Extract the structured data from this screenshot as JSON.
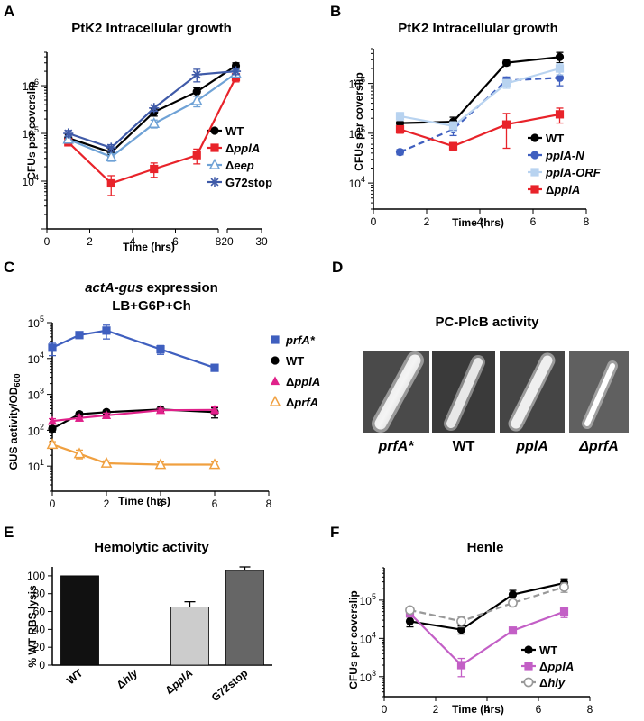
{
  "panels": {
    "A": {
      "letter": "A",
      "title": "PtK2 Intracellular growth",
      "xlabel": "Time (hrs)",
      "ylabel": "CFUs per coverslip"
    },
    "B": {
      "letter": "B",
      "title": "PtK2 Intracellular growth",
      "xlabel": "Time (hrs)",
      "ylabel": "CFUs per coverslip"
    },
    "C": {
      "letter": "C",
      "title_line1_italic": "actA-gus",
      "title_line1_rest": " expression",
      "title_line2": "LB+G6P+Ch",
      "xlabel": "Time (hrs)",
      "ylabel": "GUS activity/OD",
      "ylabel_sub": "600"
    },
    "D": {
      "letter": "D",
      "title": "PC-PlcB activity",
      "labels": [
        "prfA*",
        "WT",
        "pplA",
        "ΔprfA"
      ]
    },
    "E": {
      "letter": "E",
      "title": "Hemolytic activity",
      "ylabel": "% WT RBS lysis"
    },
    "F": {
      "letter": "F",
      "title": "Henle",
      "xlabel": "Time (hrs)",
      "ylabel": "CFUs per coverslip"
    }
  },
  "chart_data": [
    {
      "panel": "A",
      "type": "line",
      "title": "PtK2 Intracellular growth",
      "xlabel": "Time (hrs)",
      "ylabel": "CFUs per coverslip",
      "yscale": "log",
      "ylim": [
        1000,
        5000000
      ],
      "xlim": [
        0,
        30
      ],
      "x_axis_break": [
        8,
        22
      ],
      "xticks": [
        "0",
        "2",
        "4",
        "6",
        "8",
        "20",
        "30"
      ],
      "yticks": [
        "10^4",
        "10^5",
        "10^6"
      ],
      "legend": "right",
      "series": [
        {
          "name": "WT",
          "label_parts": [
            "WT"
          ],
          "color": "#000000",
          "marker": "circle",
          "x": [
            1,
            3,
            5,
            7,
            24
          ],
          "y": [
            80000,
            40000,
            280000,
            750000,
            2600000
          ],
          "err": [
            15000,
            8000,
            50000,
            150000,
            400000
          ]
        },
        {
          "name": "ΔpplA",
          "label_parts": [
            "Δ",
            "pplA"
          ],
          "color": "#e8232a",
          "marker": "square",
          "x": [
            1,
            3,
            5,
            7,
            24
          ],
          "y": [
            65000,
            9000,
            18000,
            35000,
            1500000
          ],
          "err": [
            10000,
            4000,
            6000,
            12000,
            300000
          ]
        },
        {
          "name": "Δeep",
          "label_parts": [
            "Δ",
            "eep"
          ],
          "color": "#6fa2d6",
          "marker": "triangle-open",
          "x": [
            1,
            3,
            5,
            7,
            24
          ],
          "y": [
            75000,
            32000,
            160000,
            480000,
            1800000
          ],
          "err": [
            12000,
            6000,
            30000,
            120000,
            300000
          ]
        },
        {
          "name": "G72stop",
          "label_parts": [
            "G72stop"
          ],
          "color": "#3f5aa8",
          "marker": "star",
          "x": [
            1,
            3,
            5,
            7,
            24
          ],
          "y": [
            100000,
            50000,
            340000,
            1700000,
            2000000
          ],
          "err": [
            15000,
            8000,
            50000,
            500000,
            300000
          ]
        }
      ]
    },
    {
      "panel": "B",
      "type": "line",
      "title": "PtK2 Intracellular growth",
      "xlabel": "Time (hrs)",
      "ylabel": "CFUs per coverslip",
      "yscale": "log",
      "ylim": [
        3000,
        5000000
      ],
      "xlim": [
        0,
        8
      ],
      "xticks": [
        "0",
        "2",
        "4",
        "6",
        "8"
      ],
      "yticks": [
        "10^4",
        "10^5",
        "10^6"
      ],
      "legend": "right",
      "series": [
        {
          "name": "WT",
          "label_parts": [
            "WT"
          ],
          "color": "#000000",
          "marker": "circle",
          "dash": false,
          "x": [
            1,
            3,
            5,
            7
          ],
          "y": [
            160000,
            170000,
            2600000,
            3400000
          ],
          "err": [
            40000,
            40000,
            300000,
            800000
          ]
        },
        {
          "name": "pplA-N",
          "label_parts": [
            "",
            "pplA-N"
          ],
          "color": "#3f5fbf",
          "marker": "circle",
          "dash": true,
          "x": [
            1,
            3,
            5,
            7
          ],
          "y": [
            42000,
            120000,
            1150000,
            1300000
          ],
          "err": [
            5000,
            30000,
            200000,
            400000
          ]
        },
        {
          "name": "pplA-ORF",
          "label_parts": [
            "",
            "pplA-ORF"
          ],
          "color": "#b8d3f0",
          "marker": "square",
          "dash": false,
          "x": [
            1,
            3,
            5,
            7
          ],
          "y": [
            220000,
            140000,
            1000000,
            2000000
          ],
          "err": [
            40000,
            30000,
            200000,
            500000
          ]
        },
        {
          "name": "ΔpplA",
          "label_parts": [
            "Δ",
            "pplA"
          ],
          "color": "#e8232a",
          "marker": "square",
          "dash": false,
          "x": [
            1,
            3,
            5,
            7
          ],
          "y": [
            120000,
            55000,
            150000,
            240000
          ],
          "err": [
            20000,
            10000,
            100000,
            80000
          ]
        }
      ]
    },
    {
      "panel": "C",
      "type": "line",
      "title": "actA-gus expression LB+G6P+Ch",
      "xlabel": "Time (hrs)",
      "ylabel": "GUS activity/OD600",
      "yscale": "log",
      "ylim": [
        2,
        100000
      ],
      "xlim": [
        0,
        8
      ],
      "xticks": [
        "0",
        "2",
        "4",
        "6",
        "8"
      ],
      "yticks": [
        "10^1",
        "10^2",
        "10^3",
        "10^4",
        "10^5"
      ],
      "legend": "right",
      "series": [
        {
          "name": "prfA*",
          "label_parts": [
            "",
            "prfA*"
          ],
          "color": "#3f5fbf",
          "marker": "square",
          "x": [
            0,
            1,
            2,
            4,
            6
          ],
          "y": [
            20000,
            45000,
            60000,
            18000,
            5500
          ],
          "err": [
            8000,
            8000,
            25000,
            5000,
            1000
          ]
        },
        {
          "name": "WT",
          "label_parts": [
            "WT"
          ],
          "color": "#000000",
          "marker": "circle",
          "x": [
            0,
            1,
            2,
            4,
            6
          ],
          "y": [
            110,
            280,
            320,
            380,
            320
          ],
          "err": [
            20,
            40,
            40,
            50,
            100
          ]
        },
        {
          "name": "ΔpplA",
          "label_parts": [
            "Δ",
            "pplA"
          ],
          "color": "#e0218a",
          "marker": "triangle",
          "x": [
            0,
            1,
            2,
            4,
            6
          ],
          "y": [
            180,
            220,
            260,
            360,
            370
          ],
          "err": [
            30,
            40,
            40,
            50,
            80
          ]
        },
        {
          "name": "ΔprfA",
          "label_parts": [
            "Δ",
            "prfA"
          ],
          "color": "#f0a040",
          "marker": "triangle-open",
          "x": [
            0,
            1,
            2,
            4,
            6
          ],
          "y": [
            40,
            22,
            12,
            11,
            11
          ],
          "err": [
            8,
            6,
            2,
            2,
            2
          ]
        }
      ]
    },
    {
      "panel": "E",
      "type": "bar",
      "title": "Hemolytic activity",
      "ylabel": "% WT RBS lysis",
      "ylim": [
        0,
        110
      ],
      "yticks": [
        "0",
        "20",
        "40",
        "60",
        "80",
        "100"
      ],
      "categories": [
        "WT",
        "Δhly",
        "ΔpplA",
        "G72stop"
      ],
      "values": [
        100,
        0,
        65,
        106
      ],
      "err": [
        0,
        0,
        6,
        4
      ],
      "colors": [
        "#111111",
        "#111111",
        "#cccccc",
        "#666666"
      ]
    },
    {
      "panel": "F",
      "type": "line",
      "title": "Henle",
      "xlabel": "Time (hrs)",
      "ylabel": "CFUs per coverslip",
      "yscale": "log",
      "ylim": [
        300,
        700000
      ],
      "xlim": [
        0,
        8
      ],
      "xticks": [
        "0",
        "2",
        "4",
        "6",
        "8"
      ],
      "yticks": [
        "10^3",
        "10^4",
        "10^5"
      ],
      "legend": "bottom-right",
      "series": [
        {
          "name": "WT",
          "label_parts": [
            "WT"
          ],
          "color": "#000000",
          "marker": "circle",
          "dash": false,
          "x": [
            1,
            3,
            5,
            7
          ],
          "y": [
            28000,
            17000,
            140000,
            280000
          ],
          "err": [
            8000,
            4000,
            40000,
            80000
          ]
        },
        {
          "name": "ΔpplA",
          "label_parts": [
            "Δ",
            "pplA"
          ],
          "color": "#c35fc6",
          "marker": "square",
          "dash": false,
          "x": [
            1,
            3,
            5,
            7
          ],
          "y": [
            45000,
            2000,
            16000,
            50000
          ],
          "err": [
            8000,
            1000,
            2000,
            15000
          ]
        },
        {
          "name": "Δhly",
          "label_parts": [
            "Δ",
            "hly"
          ],
          "color": "#999999",
          "marker": "circle-open",
          "dash": true,
          "x": [
            1,
            3,
            5,
            7
          ],
          "y": [
            55000,
            28000,
            85000,
            220000
          ],
          "err": [
            10000,
            8000,
            15000,
            60000
          ]
        }
      ]
    }
  ]
}
